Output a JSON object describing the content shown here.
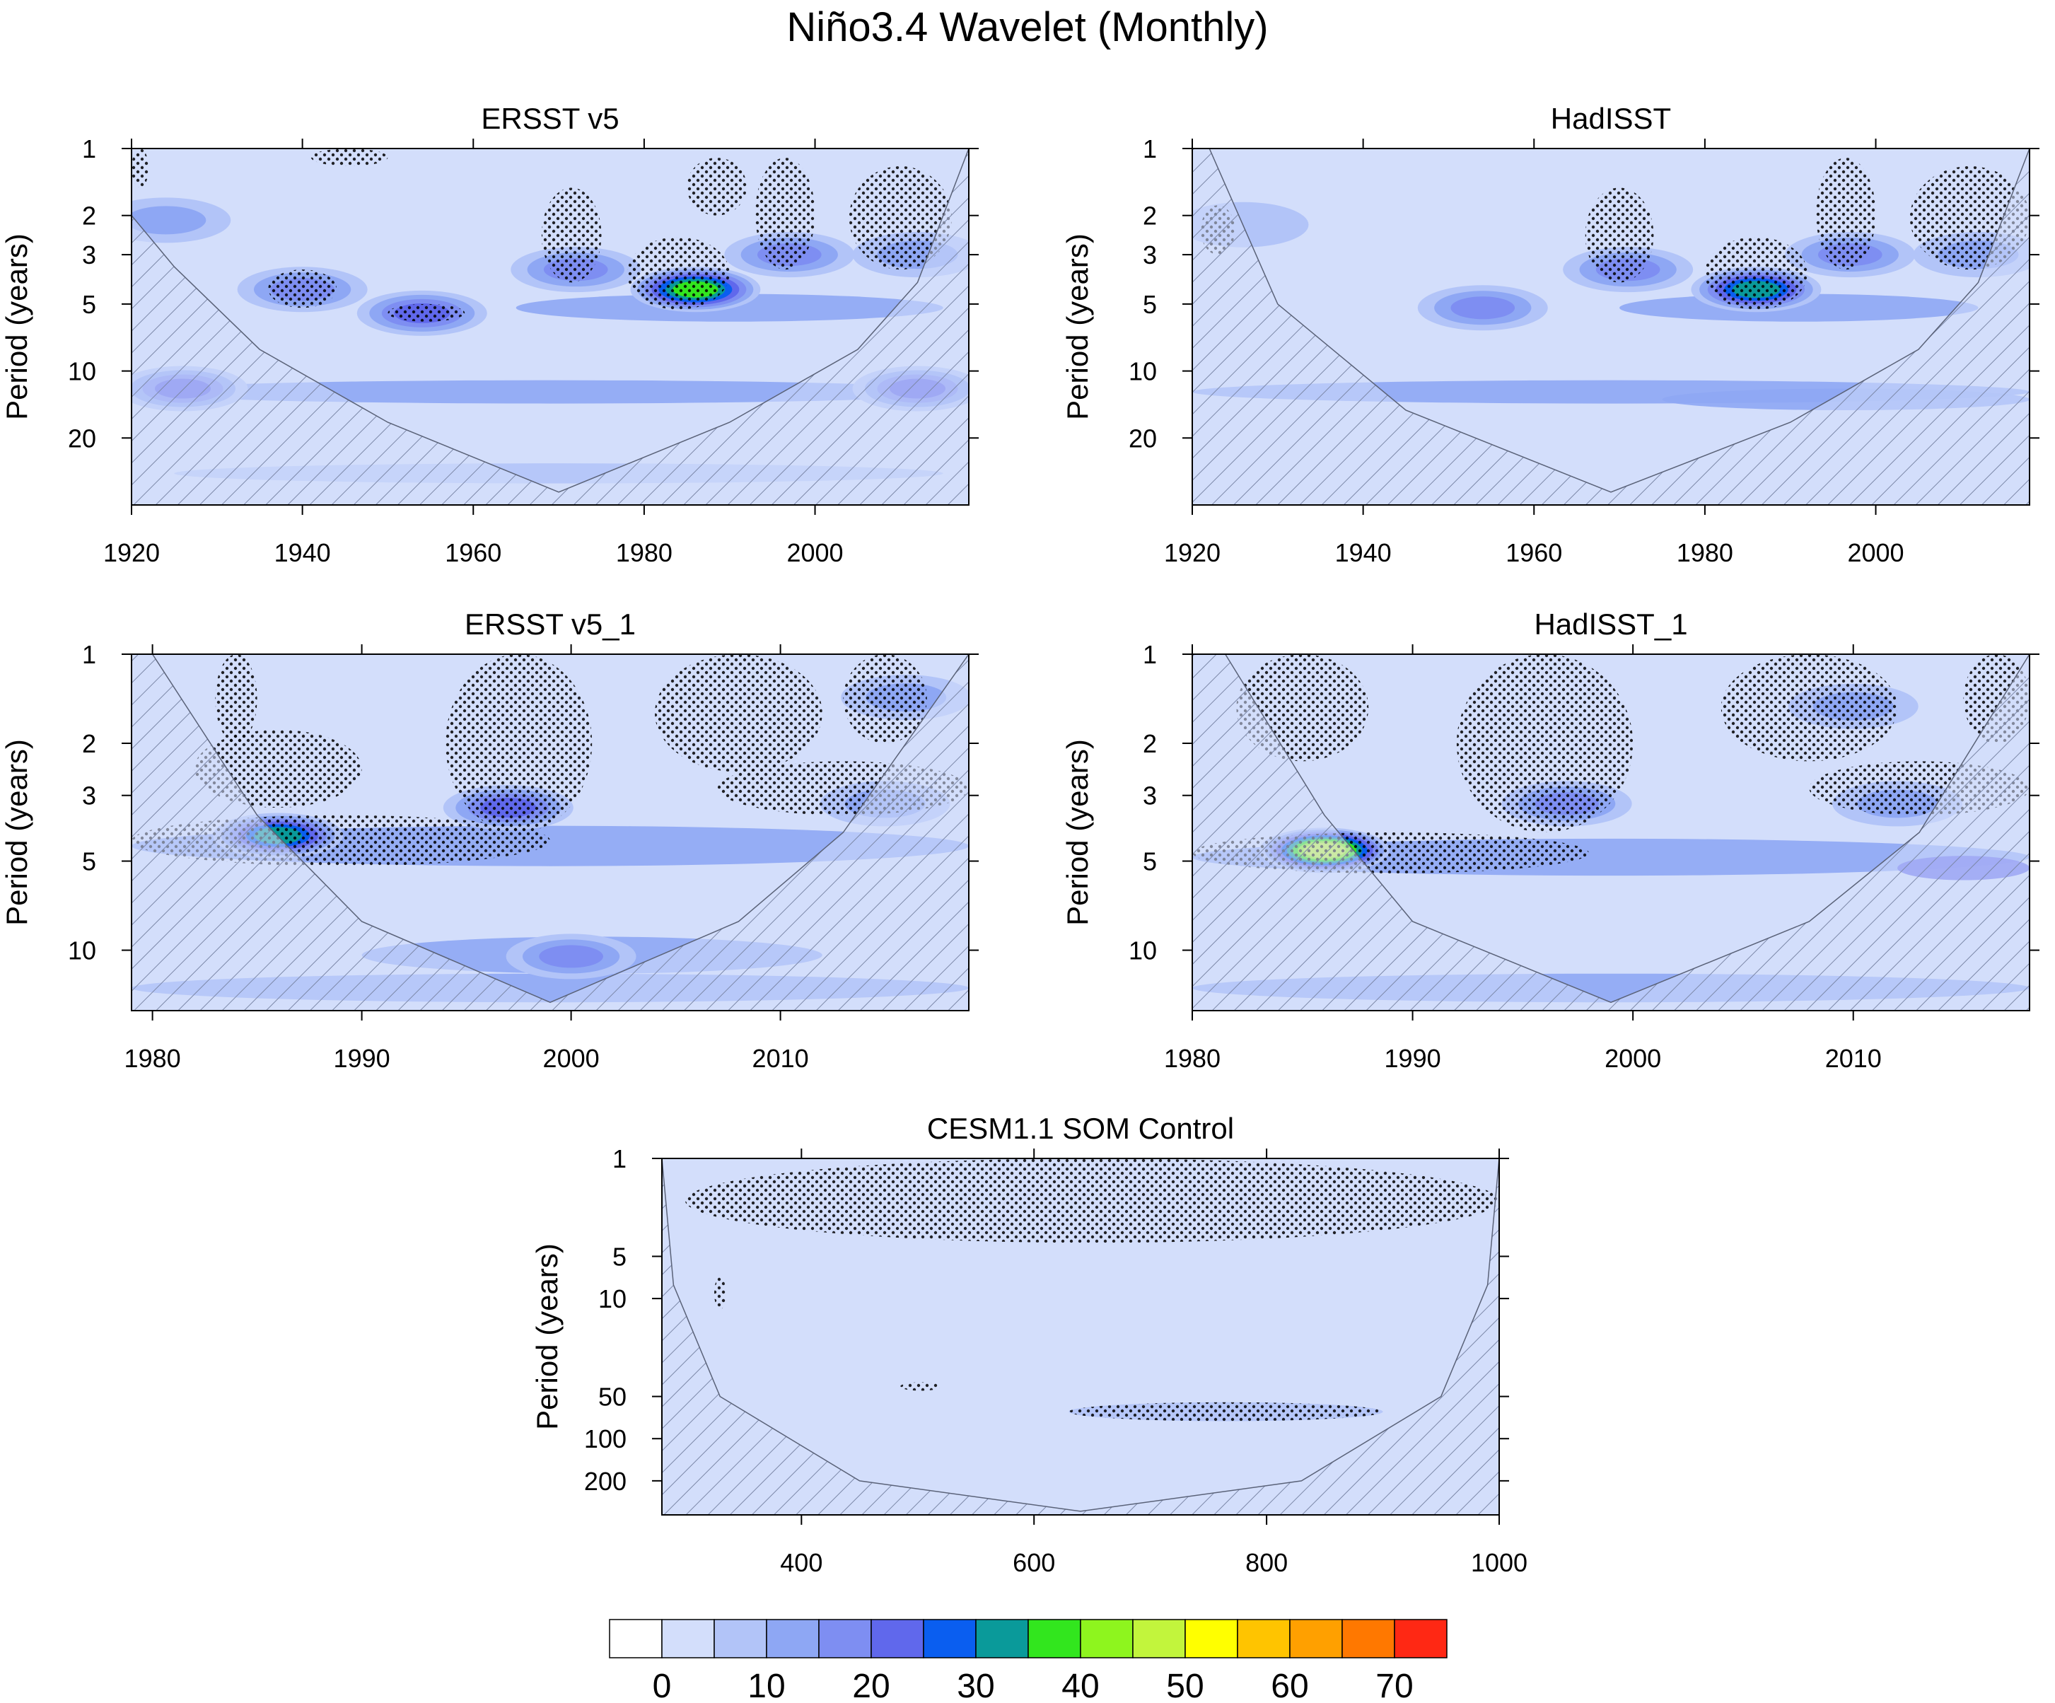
{
  "title": "Niño3.4 Wavelet (Monthly)",
  "colors": {
    "background": "#d3defb",
    "hatch": "#7c88a8",
    "stipple": "#000000"
  },
  "chart_data": [
    {
      "type": "heatmap",
      "title": "ERSST v5",
      "ylabel": "Period (years)",
      "xlim": [
        1920,
        2018
      ],
      "ylim": [
        1,
        40
      ],
      "yscale": "log",
      "yreverse": true,
      "xticks": [
        1920,
        1940,
        1960,
        1980,
        2000
      ],
      "yticks": [
        1,
        2,
        3,
        5,
        10,
        20
      ],
      "coi": [
        [
          1920,
          2
        ],
        [
          1925,
          3.4
        ],
        [
          1935,
          8
        ],
        [
          1950,
          17
        ],
        [
          1970,
          35
        ],
        [
          1990,
          17
        ],
        [
          2005,
          8
        ],
        [
          2012,
          4
        ],
        [
          2018,
          1
        ]
      ],
      "bands": [
        {
          "x": [
            1920,
            2018
          ],
          "y": [
            11,
            14
          ],
          "value": 12
        },
        {
          "x": [
            1965,
            2015
          ],
          "y": [
            4.5,
            6
          ],
          "value": 10
        },
        {
          "x": [
            1925,
            2015
          ],
          "y": [
            26,
            32
          ],
          "value": 8
        }
      ],
      "blobs": [
        {
          "x": 1924,
          "y": 2.1,
          "value": 12
        },
        {
          "x": 1940,
          "y": 4.3,
          "value": 18
        },
        {
          "x": 1954,
          "y": 5.5,
          "value": 20
        },
        {
          "x": 1972,
          "y": 3.5,
          "value": 18
        },
        {
          "x": 1986,
          "y": 4.3,
          "value": 35
        },
        {
          "x": 1997,
          "y": 3.0,
          "value": 15
        },
        {
          "x": 2012,
          "y": 3.0,
          "value": 10
        },
        {
          "x": 2012,
          "y": 12,
          "value": 22
        },
        {
          "x": 1926,
          "y": 12,
          "value": 20
        }
      ],
      "stipples": [
        {
          "x": [
            1936,
            1944
          ],
          "y": [
            3.5,
            5.2
          ]
        },
        {
          "x": [
            1950,
            1959
          ],
          "y": [
            5,
            6
          ]
        },
        {
          "x": [
            1968,
            1975
          ],
          "y": [
            1.5,
            4
          ]
        },
        {
          "x": [
            1978,
            1990
          ],
          "y": [
            2.5,
            5.3
          ]
        },
        {
          "x": [
            1985,
            1992
          ],
          "y": [
            1.1,
            2
          ]
        },
        {
          "x": [
            1993,
            2000
          ],
          "y": [
            1.1,
            3.5
          ]
        },
        {
          "x": [
            2004,
            2016
          ],
          "y": [
            1.2,
            3.5
          ]
        },
        {
          "x": [
            1941,
            1950
          ],
          "y": [
            1,
            1.2
          ]
        },
        {
          "x": [
            1920,
            1922
          ],
          "y": [
            1,
            1.5
          ]
        }
      ]
    },
    {
      "type": "heatmap",
      "title": "HadISST",
      "ylabel": "Period (years)",
      "xlim": [
        1920,
        2018
      ],
      "ylim": [
        1,
        40
      ],
      "yscale": "log",
      "yreverse": true,
      "xticks": [
        1920,
        1940,
        1960,
        1980,
        2000
      ],
      "yticks": [
        1,
        2,
        3,
        5,
        10,
        20
      ],
      "coi": [
        [
          1920,
          1
        ],
        [
          1922,
          1
        ],
        [
          1930,
          5
        ],
        [
          1945,
          15
        ],
        [
          1969,
          35
        ],
        [
          1990,
          17
        ],
        [
          2005,
          8
        ],
        [
          2012,
          4
        ],
        [
          2018,
          1
        ]
      ],
      "bands": [
        {
          "x": [
            1920,
            2018
          ],
          "y": [
            11,
            14
          ],
          "value": 10
        },
        {
          "x": [
            1970,
            2012
          ],
          "y": [
            4.5,
            6
          ],
          "value": 10
        },
        {
          "x": [
            1975,
            2018
          ],
          "y": [
            12,
            15
          ],
          "value": 14
        }
      ],
      "blobs": [
        {
          "x": 1954,
          "y": 5.2,
          "value": 18
        },
        {
          "x": 1971,
          "y": 3.5,
          "value": 15
        },
        {
          "x": 1986,
          "y": 4.3,
          "value": 33
        },
        {
          "x": 1997,
          "y": 3.0,
          "value": 15
        },
        {
          "x": 2012,
          "y": 3.0,
          "value": 12
        },
        {
          "x": 1926,
          "y": 2.2,
          "value": 8
        }
      ],
      "stipples": [
        {
          "x": [
            1966,
            1974
          ],
          "y": [
            1.5,
            4
          ]
        },
        {
          "x": [
            1980,
            1992
          ],
          "y": [
            2.5,
            5.3
          ]
        },
        {
          "x": [
            1993,
            2000
          ],
          "y": [
            1.1,
            3.5
          ]
        },
        {
          "x": [
            2004,
            2018
          ],
          "y": [
            1.2,
            3.5
          ]
        },
        {
          "x": [
            1921,
            1925
          ],
          "y": [
            1.8,
            3
          ]
        }
      ]
    },
    {
      "type": "heatmap",
      "title": "ERSST v5_1",
      "ylabel": "Period (years)",
      "xlim": [
        1979,
        2019
      ],
      "ylim": [
        1,
        16
      ],
      "yscale": "log",
      "yreverse": true,
      "xticks": [
        1980,
        1990,
        2000,
        2010
      ],
      "yticks": [
        1,
        2,
        3,
        5,
        10
      ],
      "coi": [
        [
          1979,
          1
        ],
        [
          1980,
          1
        ],
        [
          1985,
          3.5
        ],
        [
          1990,
          8
        ],
        [
          1999,
          15
        ],
        [
          2008,
          8
        ],
        [
          2013,
          4
        ],
        [
          2019,
          1
        ]
      ],
      "bands": [
        {
          "x": [
            1979,
            2019
          ],
          "y": [
            3.8,
            5.2
          ],
          "value": 14
        },
        {
          "x": [
            1979,
            2019
          ],
          "y": [
            12,
            15
          ],
          "value": 12
        },
        {
          "x": [
            1990,
            2012
          ],
          "y": [
            9,
            12
          ],
          "value": 10
        }
      ],
      "blobs": [
        {
          "x": 1986,
          "y": 4.1,
          "value": 33
        },
        {
          "x": 1997,
          "y": 3.3,
          "value": 20
        },
        {
          "x": 2015,
          "y": 3.2,
          "value": 12
        },
        {
          "x": 2016,
          "y": 1.4,
          "value": 10
        },
        {
          "x": 2000,
          "y": 10.5,
          "value": 16
        }
      ],
      "stipples": [
        {
          "x": [
            1979,
            1999
          ],
          "y": [
            3.5,
            5.2
          ]
        },
        {
          "x": [
            1982,
            1990
          ],
          "y": [
            1.8,
            3.3
          ]
        },
        {
          "x": [
            1994,
            2001
          ],
          "y": [
            1,
            4
          ]
        },
        {
          "x": [
            1983,
            1985
          ],
          "y": [
            1,
            2
          ]
        },
        {
          "x": [
            2004,
            2012
          ],
          "y": [
            1,
            2.5
          ]
        },
        {
          "x": [
            2007,
            2019
          ],
          "y": [
            2.3,
            3.5
          ]
        },
        {
          "x": [
            2013,
            2017
          ],
          "y": [
            1,
            2
          ]
        }
      ]
    },
    {
      "type": "heatmap",
      "title": "HadISST_1",
      "ylabel": "Period (years)",
      "xlim": [
        1980,
        2018
      ],
      "ylim": [
        1,
        16
      ],
      "yscale": "log",
      "yreverse": true,
      "xticks": [
        1980,
        1990,
        2000,
        2010
      ],
      "yticks": [
        1,
        2,
        3,
        5,
        10
      ],
      "coi": [
        [
          1980,
          1
        ],
        [
          1981.5,
          1
        ],
        [
          1986,
          3.5
        ],
        [
          1990,
          8
        ],
        [
          1999,
          15
        ],
        [
          2008,
          8
        ],
        [
          2013,
          4
        ],
        [
          2018,
          1
        ]
      ],
      "bands": [
        {
          "x": [
            1980,
            2018
          ],
          "y": [
            4.2,
            5.6
          ],
          "value": 14
        },
        {
          "x": [
            1980,
            2018
          ],
          "y": [
            12,
            15
          ],
          "value": 14
        },
        {
          "x": [
            2012,
            2018
          ],
          "y": [
            4.8,
            5.8
          ],
          "value": 22
        }
      ],
      "blobs": [
        {
          "x": 1986,
          "y": 4.6,
          "value": 46
        },
        {
          "x": 1997,
          "y": 3.2,
          "value": 18
        },
        {
          "x": 2012,
          "y": 3.2,
          "value": 12
        },
        {
          "x": 2010,
          "y": 1.5,
          "value": 10
        }
      ],
      "stipples": [
        {
          "x": [
            1980,
            1998
          ],
          "y": [
            4,
            5.5
          ]
        },
        {
          "x": [
            1982,
            1988
          ],
          "y": [
            1,
            2.3
          ]
        },
        {
          "x": [
            1992,
            2000
          ],
          "y": [
            1,
            4
          ]
        },
        {
          "x": [
            2004,
            2012
          ],
          "y": [
            1,
            2.3
          ]
        },
        {
          "x": [
            2008,
            2018
          ],
          "y": [
            2.3,
            3.5
          ]
        },
        {
          "x": [
            2015,
            2018
          ],
          "y": [
            1,
            2
          ]
        }
      ]
    },
    {
      "type": "heatmap",
      "title": "CESM1.1 SOM Control",
      "ylabel": "Period (years)",
      "xlim": [
        280,
        1000
      ],
      "ylim": [
        1,
        350
      ],
      "yscale": "log",
      "yreverse": true,
      "xticks": [
        400,
        600,
        800,
        1000
      ],
      "yticks": [
        1,
        5,
        10,
        50,
        100,
        200
      ],
      "coi": [
        [
          280,
          1
        ],
        [
          290,
          8
        ],
        [
          330,
          50
        ],
        [
          450,
          200
        ],
        [
          640,
          330
        ],
        [
          830,
          200
        ],
        [
          950,
          50
        ],
        [
          990,
          8
        ],
        [
          1000,
          1
        ]
      ],
      "bands": [
        {
          "x": [
            630,
            900
          ],
          "y": [
            55,
            75
          ],
          "value": 8
        }
      ],
      "blobs": [],
      "stipples": [
        {
          "x": [
            300,
            1000
          ],
          "y": [
            1,
            4
          ]
        },
        {
          "x": [
            630,
            900
          ],
          "y": [
            55,
            75
          ]
        },
        {
          "x": [
            485,
            520
          ],
          "y": [
            40,
            45
          ]
        },
        {
          "x": [
            325,
            335
          ],
          "y": [
            7,
            12
          ]
        }
      ]
    }
  ],
  "colorbar": {
    "colors": [
      "#ffffff",
      "#d3defb",
      "#b2c4f8",
      "#8ea7f4",
      "#7e8ef2",
      "#6068ec",
      "#0a5ef0",
      "#0a9a9a",
      "#32e61e",
      "#8ef51e",
      "#c2f53c",
      "#ffff00",
      "#ffc400",
      "#ffa000",
      "#ff7800",
      "#ff2814"
    ],
    "labels": [
      "0",
      "10",
      "20",
      "30",
      "40",
      "50",
      "60",
      "70"
    ]
  }
}
